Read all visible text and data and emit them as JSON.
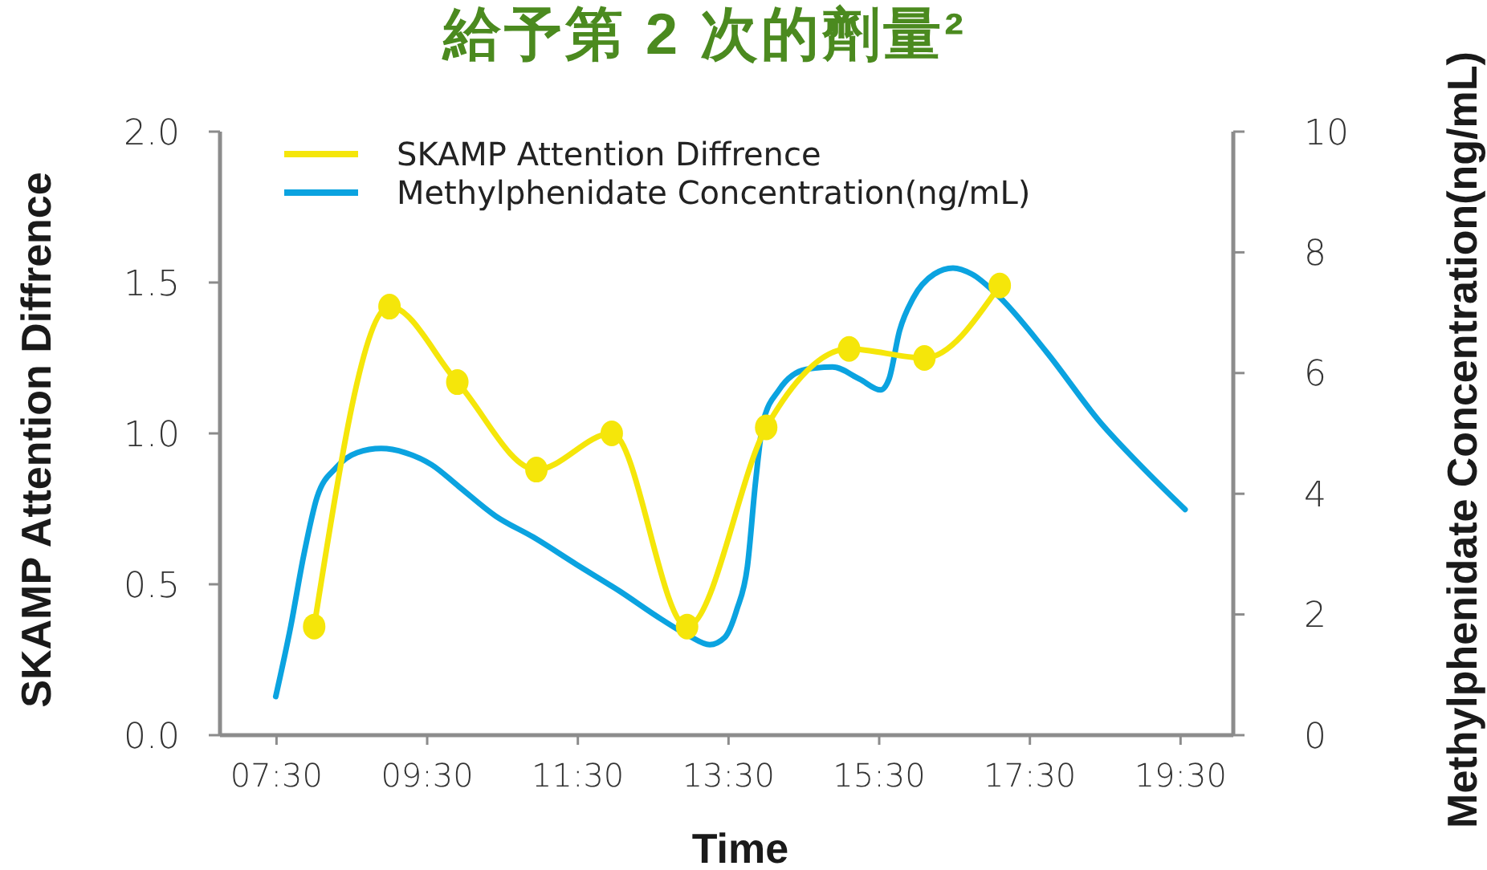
{
  "chart_data": {
    "type": "line",
    "title": "給予第 2 次的劑量²",
    "xlabel": "Time",
    "ylabel": "SKAMP Attention Diffrence",
    "y2label": "Methylphenidate Concentration(ng/mL)",
    "xlim": [
      6.75,
      20.2
    ],
    "xticks": [
      {
        "value": 7.5,
        "label": "07:30"
      },
      {
        "value": 9.5,
        "label": "09:30"
      },
      {
        "value": 11.5,
        "label": "11:30"
      },
      {
        "value": 13.5,
        "label": "13:30"
      },
      {
        "value": 15.5,
        "label": "15:30"
      },
      {
        "value": 17.5,
        "label": "17:30"
      },
      {
        "value": 19.5,
        "label": "19:30"
      }
    ],
    "ylim": [
      0,
      2
    ],
    "yticks": [
      {
        "value": 0,
        "label": "0.0"
      },
      {
        "value": 0.5,
        "label": "0.5"
      },
      {
        "value": 1,
        "label": "1.0"
      },
      {
        "value": 1.5,
        "label": "1.5"
      },
      {
        "value": 2,
        "label": "2.0"
      }
    ],
    "y2lim": [
      0,
      10
    ],
    "y2ticks": [
      0,
      2,
      4,
      6,
      8,
      10
    ],
    "legend": "top left",
    "marker": "circle",
    "series": [
      {
        "name": "SKAMP Attention Diffrence",
        "color": "#f5e60a",
        "x": [
          8.0,
          9.0,
          9.9,
          10.95,
          11.95,
          12.95,
          14.0,
          15.1,
          16.1,
          17.1
        ],
        "values": [
          0.36,
          1.42,
          1.17,
          0.88,
          1.0,
          0.36,
          1.02,
          1.28,
          1.25,
          1.49
        ]
      },
      {
        "name": "Methylphenidate Concentration(ng/mL)",
        "color": "#0ba3e0",
        "axis": "y2",
        "marker": "none",
        "x": [
          7.49,
          7.69,
          7.86,
          8.04,
          8.29,
          8.57,
          8.89,
          9.21,
          9.56,
          9.92,
          10.41,
          10.91,
          11.48,
          12.05,
          12.61,
          12.97,
          13.25,
          13.45,
          13.61,
          13.75,
          13.86,
          13.96,
          14.17,
          14.53,
          14.88,
          15.24,
          15.52,
          15.63,
          15.77,
          15.95,
          16.23,
          16.48,
          16.73,
          17.08,
          17.72,
          18.43,
          19.0,
          19.56
        ],
        "values": [
          0.64,
          1.81,
          2.97,
          3.95,
          4.43,
          4.68,
          4.75,
          4.68,
          4.48,
          4.12,
          3.63,
          3.28,
          2.83,
          2.39,
          1.92,
          1.65,
          1.5,
          1.62,
          2.08,
          2.79,
          4.21,
          5.19,
          5.72,
          6.06,
          6.1,
          5.9,
          5.72,
          5.9,
          6.7,
          7.24,
          7.64,
          7.74,
          7.64,
          7.28,
          6.35,
          5.19,
          4.43,
          3.74
        ]
      }
    ]
  }
}
